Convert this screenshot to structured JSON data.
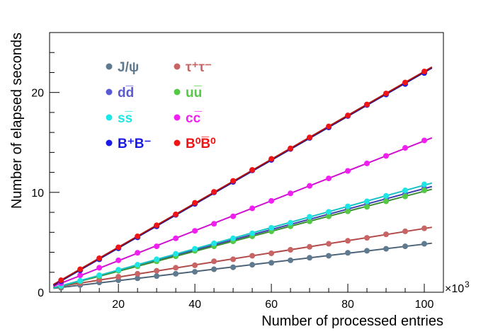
{
  "chart_data": {
    "type": "scatter",
    "xlabel": "Number of processed entries",
    "ylabel": "Number of elapsed seconds",
    "x_multiplier_label": "×10",
    "x_multiplier_exponent": "3",
    "xlim": [
      2,
      105
    ],
    "ylim": [
      0,
      26
    ],
    "x_ticks": [
      20,
      40,
      60,
      80,
      100
    ],
    "y_ticks": [
      0,
      10,
      20
    ],
    "legend_position": "top-left",
    "x": [
      5,
      10,
      15,
      20,
      25,
      30,
      35,
      40,
      45,
      50,
      55,
      60,
      65,
      70,
      75,
      80,
      85,
      90,
      95,
      100
    ],
    "series": [
      {
        "name": "J/ψ",
        "color": "#5f7a8e",
        "fit_color": "#4d6478",
        "values": [
          0.45,
          0.72,
          0.98,
          1.2,
          1.4,
          1.62,
          1.85,
          2.05,
          2.3,
          2.5,
          2.75,
          2.95,
          3.2,
          3.45,
          3.65,
          3.95,
          4.15,
          4.35,
          4.6,
          4.85
        ]
      },
      {
        "name": "τ⁺τ⁻",
        "color": "#c86464",
        "fit_color": "#b24a4a",
        "values": [
          0.55,
          0.9,
          1.25,
          1.55,
          1.85,
          2.15,
          2.45,
          2.7,
          3.1,
          3.3,
          3.65,
          3.9,
          4.25,
          4.55,
          4.85,
          5.15,
          5.45,
          5.8,
          6.1,
          6.4
        ]
      },
      {
        "name": "d̅d̅",
        "color": "#5a5ad2",
        "fit_color": "#3f3fb0",
        "values": [
          0.6,
          1.1,
          1.65,
          2.2,
          2.65,
          3.2,
          3.75,
          4.3,
          4.8,
          5.3,
          5.8,
          6.3,
          6.75,
          7.3,
          7.8,
          8.35,
          8.8,
          9.3,
          9.85,
          10.4
        ]
      },
      {
        "name": "u̅u̅",
        "color": "#55c846",
        "fit_color": "#3a8f30",
        "values": [
          0.6,
          1.1,
          1.6,
          2.15,
          2.6,
          3.1,
          3.6,
          4.15,
          4.6,
          5.1,
          5.6,
          6.1,
          6.6,
          7.1,
          7.6,
          8.1,
          8.55,
          9.1,
          9.6,
          10.2
        ]
      },
      {
        "name": "s̅s̅",
        "color": "#1fe6e6",
        "fit_color": "#17c4c4",
        "values": [
          0.65,
          1.15,
          1.7,
          2.25,
          2.75,
          3.3,
          3.85,
          4.35,
          4.9,
          5.4,
          5.9,
          6.45,
          6.95,
          7.55,
          8.05,
          8.6,
          9.1,
          9.65,
          10.2,
          10.8
        ]
      },
      {
        "name": "c̅c̅",
        "color": "#f020f0",
        "fit_color": "#d010d0",
        "values": [
          0.9,
          1.7,
          2.45,
          3.2,
          3.95,
          4.6,
          5.4,
          6.15,
          6.85,
          7.6,
          8.4,
          9.15,
          9.9,
          10.65,
          11.4,
          12.15,
          12.9,
          13.65,
          14.45,
          15.2
        ]
      },
      {
        "name": "B⁺B⁻",
        "color": "#1a1ae6",
        "fit_color": "#101090",
        "values": [
          1.1,
          2.2,
          3.3,
          4.4,
          5.5,
          6.6,
          7.75,
          8.85,
          10.0,
          11.05,
          12.2,
          13.25,
          14.35,
          15.45,
          16.5,
          17.65,
          18.75,
          19.8,
          20.85,
          21.95
        ]
      },
      {
        "name": "B⁰B̅⁰",
        "color": "#f01414",
        "fit_color": "#b01010",
        "values": [
          1.2,
          2.3,
          3.4,
          4.5,
          5.6,
          6.7,
          7.8,
          8.95,
          10.05,
          11.15,
          12.25,
          13.35,
          14.4,
          15.5,
          16.6,
          17.7,
          18.8,
          19.9,
          21.0,
          22.1
        ]
      }
    ]
  },
  "legend": {
    "items": [
      {
        "label": "J/ψ",
        "color": "#5f7a8e",
        "col": 0,
        "row": 0
      },
      {
        "label": "τ⁺τ⁻",
        "color": "#c86464",
        "col": 1,
        "row": 0
      },
      {
        "label": "dd̅",
        "color": "#5a5ad2",
        "col": 0,
        "row": 1
      },
      {
        "label": "uu̅",
        "color": "#55c846",
        "col": 1,
        "row": 1
      },
      {
        "label": "ss̅",
        "color": "#1fe6e6",
        "col": 0,
        "row": 2
      },
      {
        "label": "cc̅",
        "color": "#f020f0",
        "col": 1,
        "row": 2
      },
      {
        "label": "B⁺B⁻",
        "color": "#1a1ae6",
        "col": 0,
        "row": 3
      },
      {
        "label": "B⁰B̅⁰",
        "color": "#f01414",
        "col": 1,
        "row": 3
      }
    ]
  }
}
